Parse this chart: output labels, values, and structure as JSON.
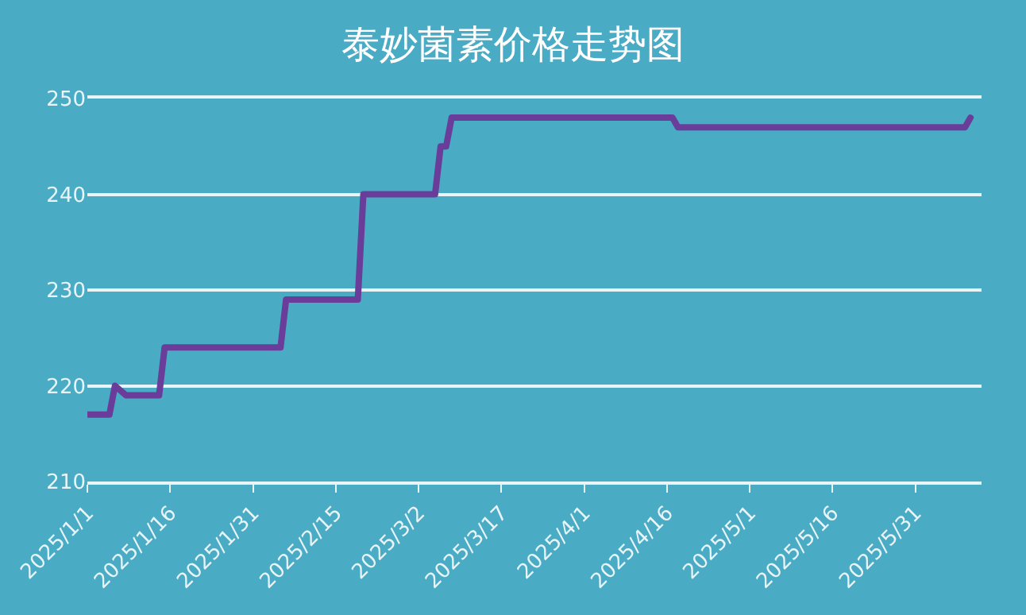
{
  "chart_data": {
    "type": "line",
    "title": "泰妙菌素价格走势图",
    "x": [
      "2025-01-01",
      "2025-01-05",
      "2025-01-06",
      "2025-01-08",
      "2025-01-14",
      "2025-01-15",
      "2025-02-05",
      "2025-02-06",
      "2025-02-19",
      "2025-02-20",
      "2025-03-05",
      "2025-03-06",
      "2025-03-07",
      "2025-03-08",
      "2025-04-17",
      "2025-04-18",
      "2025-06-09",
      "2025-06-10"
    ],
    "series": [
      {
        "color": "#6a3d9a",
        "values": [
          217,
          217,
          220,
          219,
          219,
          224,
          224,
          229,
          229,
          240,
          240,
          245,
          245,
          248,
          248,
          247,
          247,
          248
        ]
      }
    ],
    "xlim": [
      "2025-01-01",
      "2025-06-12"
    ],
    "xticks": [
      {
        "value": "2025-01-01",
        "label": "2025/1/1"
      },
      {
        "value": "2025-01-16",
        "label": "2025/1/16"
      },
      {
        "value": "2025-01-31",
        "label": "2025/1/31"
      },
      {
        "value": "2025-02-15",
        "label": "2025/2/15"
      },
      {
        "value": "2025-03-02",
        "label": "2025/3/2"
      },
      {
        "value": "2025-03-17",
        "label": "2025/3/17"
      },
      {
        "value": "2025-04-01",
        "label": "2025/4/1"
      },
      {
        "value": "2025-04-16",
        "label": "2025/4/16"
      },
      {
        "value": "2025-05-01",
        "label": "2025/5/1"
      },
      {
        "value": "2025-05-16",
        "label": "2025/5/16"
      },
      {
        "value": "2025-05-31",
        "label": "2025/5/31"
      }
    ],
    "ylim": [
      210,
      250
    ],
    "yticks": [
      210,
      220,
      230,
      240,
      250
    ],
    "grid": "y",
    "legend": false,
    "marker": "none",
    "line_style": "solid"
  }
}
